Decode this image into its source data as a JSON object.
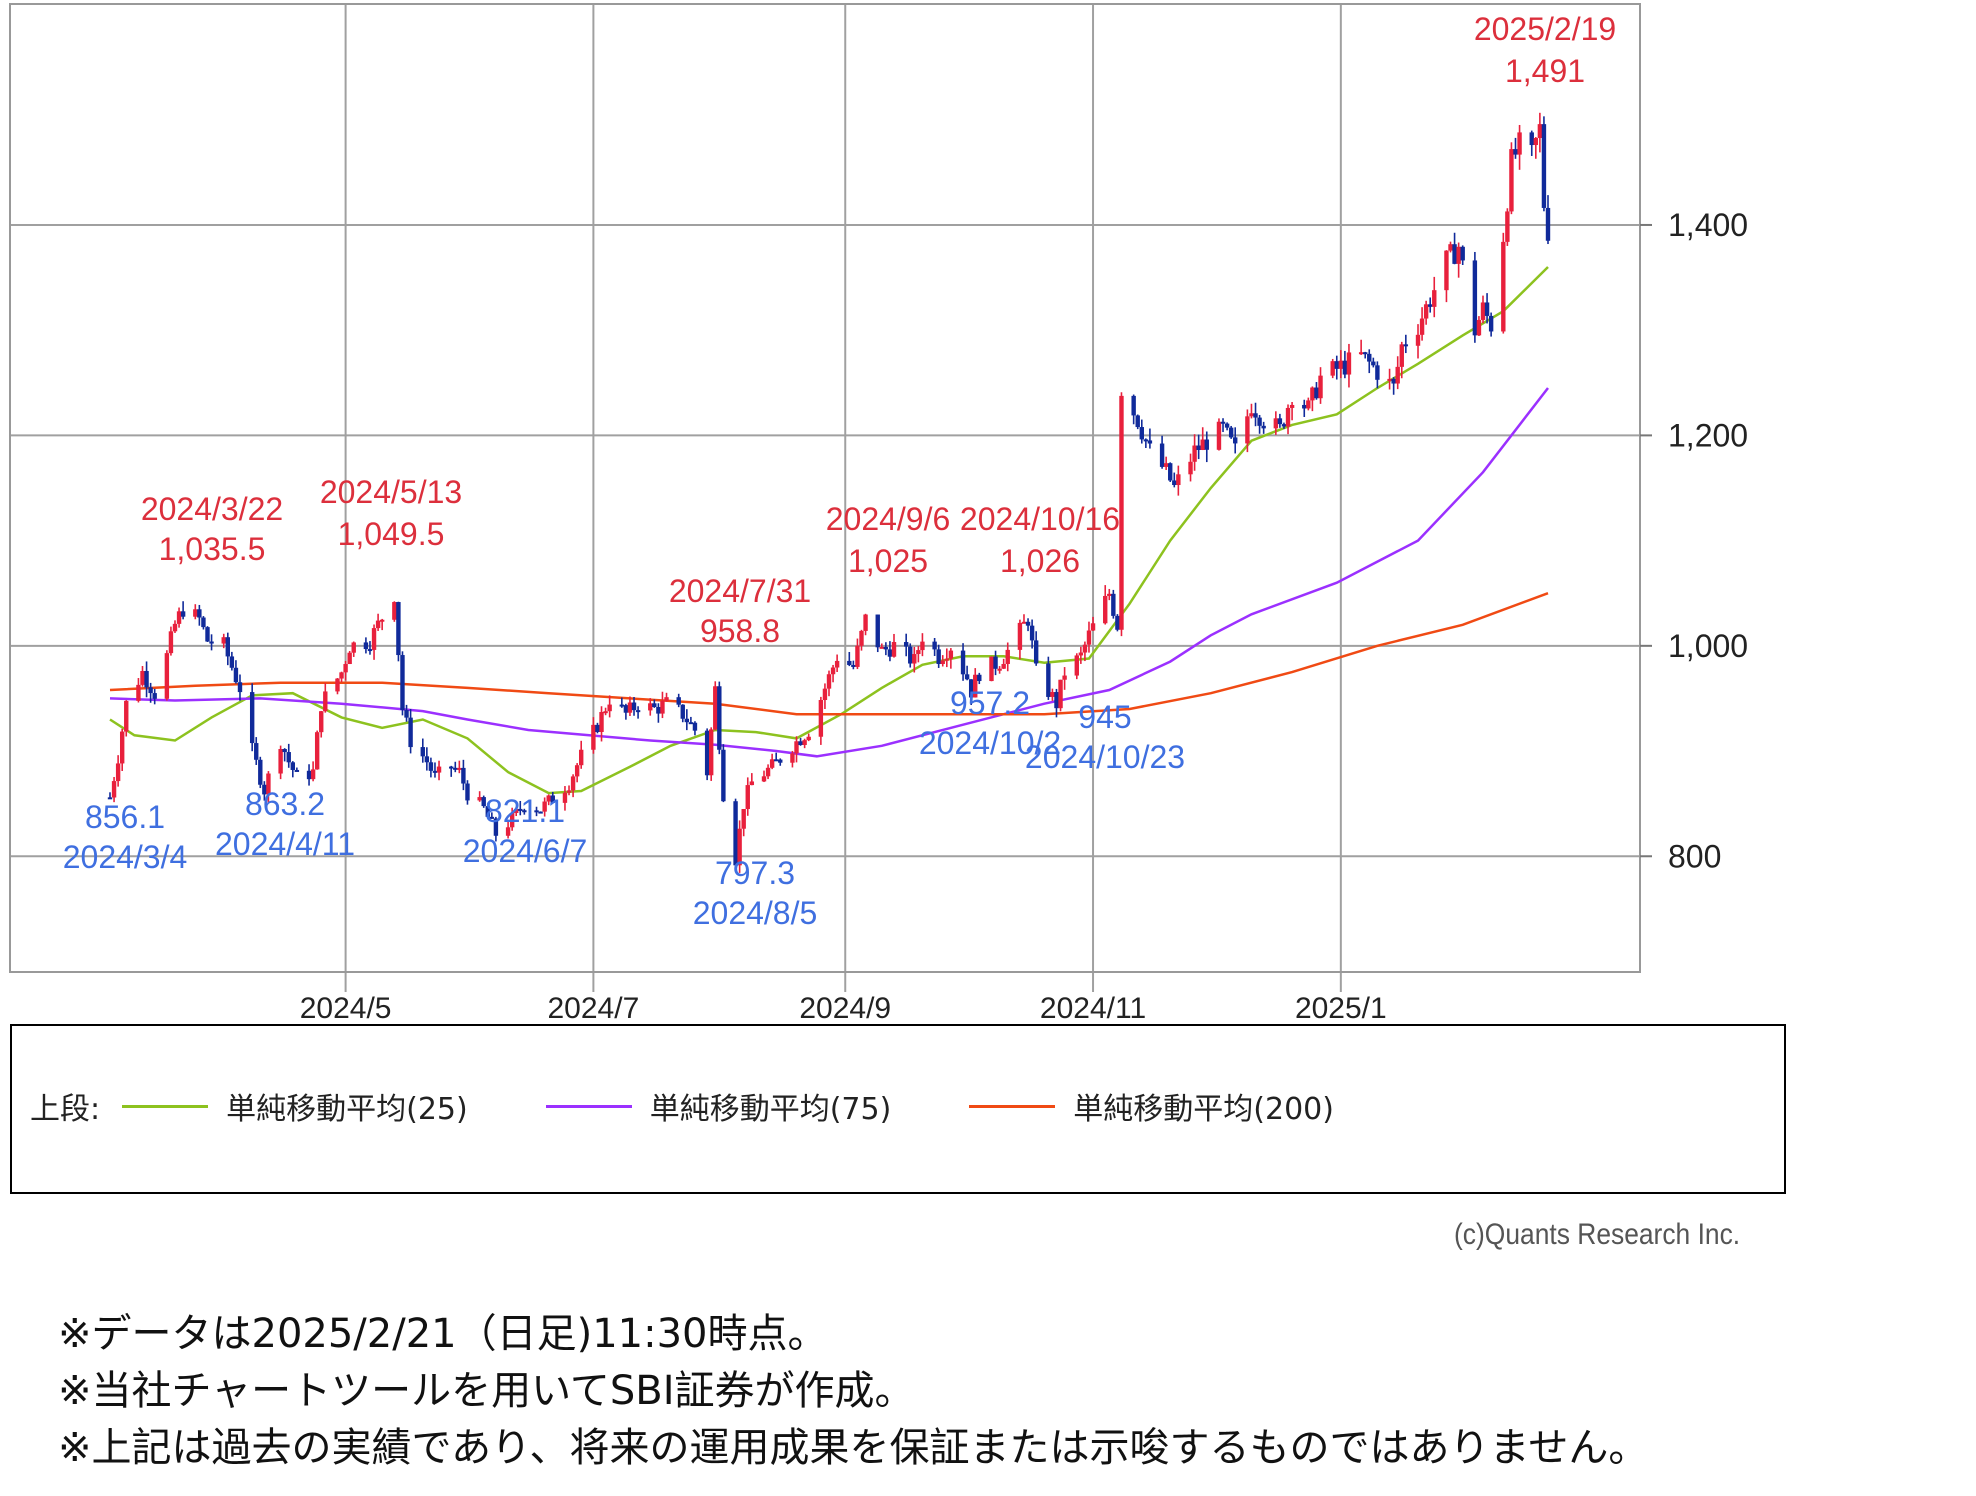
{
  "chart_data": {
    "type": "candlestick",
    "x_ticks": [
      "2024/5",
      "2024/7",
      "2024/9",
      "2024/11",
      "2025/1"
    ],
    "y_ticks": [
      "800",
      "1,000",
      "1,200",
      "1,400"
    ],
    "ylim": [
      690,
      1610
    ],
    "grid": true,
    "price_axis": "right",
    "candle_colors": {
      "up": "#e8203c",
      "down": "#102a9a"
    },
    "price_path": [
      [
        "2024-03-04",
        856
      ],
      [
        "2024-03-06",
        895
      ],
      [
        "2024-03-08",
        945
      ],
      [
        "2024-03-12",
        975
      ],
      [
        "2024-03-15",
        955
      ],
      [
        "2024-03-18",
        990
      ],
      [
        "2024-03-20",
        1020
      ],
      [
        "2024-03-22",
        1035.5
      ],
      [
        "2024-03-26",
        1025
      ],
      [
        "2024-03-28",
        1005
      ],
      [
        "2024-04-01",
        1000
      ],
      [
        "2024-04-03",
        980
      ],
      [
        "2024-04-05",
        960
      ],
      [
        "2024-04-08",
        900
      ],
      [
        "2024-04-11",
        863.2
      ],
      [
        "2024-04-15",
        910
      ],
      [
        "2024-04-17",
        890
      ],
      [
        "2024-04-19",
        875
      ],
      [
        "2024-04-23",
        880
      ],
      [
        "2024-04-25",
        945
      ],
      [
        "2024-04-30",
        975
      ],
      [
        "2024-05-02",
        1000
      ],
      [
        "2024-05-07",
        1005
      ],
      [
        "2024-05-09",
        1020
      ],
      [
        "2024-05-13",
        1049.5
      ],
      [
        "2024-05-15",
        940
      ],
      [
        "2024-05-17",
        910
      ],
      [
        "2024-05-21",
        890
      ],
      [
        "2024-05-23",
        875
      ],
      [
        "2024-05-27",
        885
      ],
      [
        "2024-05-29",
        880
      ],
      [
        "2024-05-31",
        860
      ],
      [
        "2024-06-04",
        845
      ],
      [
        "2024-06-07",
        821.1
      ],
      [
        "2024-06-11",
        835
      ],
      [
        "2024-06-14",
        850
      ],
      [
        "2024-06-18",
        845
      ],
      [
        "2024-06-21",
        855
      ],
      [
        "2024-06-25",
        870
      ],
      [
        "2024-06-28",
        895
      ],
      [
        "2024-07-02",
        925
      ],
      [
        "2024-07-05",
        950
      ],
      [
        "2024-07-09",
        935
      ],
      [
        "2024-07-12",
        945
      ],
      [
        "2024-07-16",
        940
      ],
      [
        "2024-07-19",
        945
      ],
      [
        "2024-07-23",
        935
      ],
      [
        "2024-07-26",
        920
      ],
      [
        "2024-07-29",
        880
      ],
      [
        "2024-07-31",
        958.8
      ],
      [
        "2024-08-02",
        860
      ],
      [
        "2024-08-05",
        797.3
      ],
      [
        "2024-08-07",
        850
      ],
      [
        "2024-08-09",
        870
      ],
      [
        "2024-08-14",
        885
      ],
      [
        "2024-08-19",
        905
      ],
      [
        "2024-08-23",
        920
      ],
      [
        "2024-08-27",
        960
      ],
      [
        "2024-08-30",
        990
      ],
      [
        "2024-09-03",
        980
      ],
      [
        "2024-09-06",
        1025
      ],
      [
        "2024-09-10",
        995
      ],
      [
        "2024-09-13",
        1000
      ],
      [
        "2024-09-18",
        985
      ],
      [
        "2024-09-20",
        1010
      ],
      [
        "2024-09-24",
        990
      ],
      [
        "2024-09-27",
        1000
      ],
      [
        "2024-10-01",
        970
      ],
      [
        "2024-10-02",
        957.2
      ],
      [
        "2024-10-04",
        975
      ],
      [
        "2024-10-09",
        985
      ],
      [
        "2024-10-11",
        995
      ],
      [
        "2024-10-16",
        1026
      ],
      [
        "2024-10-18",
        975
      ],
      [
        "2024-10-23",
        945
      ],
      [
        "2024-10-25",
        975
      ],
      [
        "2024-10-29",
        990
      ],
      [
        "2024-10-31",
        1010
      ],
      [
        "2024-11-05",
        1050
      ],
      [
        "2024-11-07",
        1020
      ],
      [
        "2024-11-08",
        1245
      ],
      [
        "2024-11-12",
        1215
      ],
      [
        "2024-11-15",
        1185
      ],
      [
        "2024-11-19",
        1165
      ],
      [
        "2024-11-21",
        1150
      ],
      [
        "2024-11-26",
        1185
      ],
      [
        "2024-11-29",
        1195
      ],
      [
        "2024-12-03",
        1205
      ],
      [
        "2024-12-06",
        1185
      ],
      [
        "2024-12-10",
        1230
      ],
      [
        "2024-12-13",
        1215
      ],
      [
        "2024-12-17",
        1205
      ],
      [
        "2024-12-20",
        1240
      ],
      [
        "2024-12-24",
        1225
      ],
      [
        "2024-12-27",
        1255
      ],
      [
        "2025-01-06",
        1275
      ],
      [
        "2025-01-09",
        1265
      ],
      [
        "2025-01-14",
        1245
      ],
      [
        "2025-01-16",
        1285
      ],
      [
        "2025-01-20",
        1305
      ],
      [
        "2025-01-23",
        1330
      ],
      [
        "2025-01-27",
        1365
      ],
      [
        "2025-01-30",
        1380
      ],
      [
        "2025-02-03",
        1300
      ],
      [
        "2025-02-05",
        1320
      ],
      [
        "2025-02-07",
        1305
      ],
      [
        "2025-02-10",
        1390
      ],
      [
        "2025-02-12",
        1460
      ],
      [
        "2025-02-14",
        1475
      ],
      [
        "2025-02-17",
        1465
      ],
      [
        "2025-02-19",
        1491
      ],
      [
        "2025-02-20",
        1420
      ],
      [
        "2025-02-21",
        1395
      ]
    ],
    "moving_averages": [
      {
        "name": "単純移動平均(25)",
        "color": "#8dc21f",
        "points": [
          [
            "2024-03-04",
            930
          ],
          [
            "2024-03-10",
            915
          ],
          [
            "2024-03-20",
            910
          ],
          [
            "2024-03-29",
            932
          ],
          [
            "2024-04-08",
            953
          ],
          [
            "2024-04-18",
            955
          ],
          [
            "2024-04-30",
            932
          ],
          [
            "2024-05-10",
            922
          ],
          [
            "2024-05-20",
            930
          ],
          [
            "2024-05-31",
            912
          ],
          [
            "2024-06-10",
            880
          ],
          [
            "2024-06-20",
            860
          ],
          [
            "2024-06-28",
            862
          ],
          [
            "2024-07-10",
            885
          ],
          [
            "2024-07-20",
            905
          ],
          [
            "2024-07-31",
            920
          ],
          [
            "2024-08-10",
            918
          ],
          [
            "2024-08-20",
            912
          ],
          [
            "2024-08-31",
            935
          ],
          [
            "2024-09-10",
            960
          ],
          [
            "2024-09-20",
            982
          ],
          [
            "2024-09-30",
            990
          ],
          [
            "2024-10-10",
            990
          ],
          [
            "2024-10-20",
            984
          ],
          [
            "2024-10-31",
            988
          ],
          [
            "2024-11-10",
            1040
          ],
          [
            "2024-11-20",
            1100
          ],
          [
            "2024-11-30",
            1150
          ],
          [
            "2024-12-10",
            1195
          ],
          [
            "2024-12-20",
            1210
          ],
          [
            "2024-12-31",
            1220
          ],
          [
            "2025-01-10",
            1245
          ],
          [
            "2025-01-20",
            1268
          ],
          [
            "2025-01-31",
            1295
          ],
          [
            "2025-02-10",
            1318
          ],
          [
            "2025-02-21",
            1360
          ]
        ]
      },
      {
        "name": "単純移動平均(75)",
        "color": "#9b30ff",
        "points": [
          [
            "2024-03-04",
            950
          ],
          [
            "2024-03-20",
            948
          ],
          [
            "2024-04-10",
            950
          ],
          [
            "2024-04-30",
            945
          ],
          [
            "2024-05-20",
            938
          ],
          [
            "2024-05-31",
            930
          ],
          [
            "2024-06-15",
            920
          ],
          [
            "2024-06-30",
            915
          ],
          [
            "2024-07-15",
            910
          ],
          [
            "2024-07-31",
            906
          ],
          [
            "2024-08-15",
            900
          ],
          [
            "2024-08-25",
            895
          ],
          [
            "2024-09-10",
            905
          ],
          [
            "2024-09-30",
            925
          ],
          [
            "2024-10-20",
            945
          ],
          [
            "2024-11-05",
            958
          ],
          [
            "2024-11-20",
            985
          ],
          [
            "2024-11-30",
            1010
          ],
          [
            "2024-12-10",
            1030
          ],
          [
            "2024-12-31",
            1060
          ],
          [
            "2025-01-20",
            1100
          ],
          [
            "2025-02-05",
            1165
          ],
          [
            "2025-02-21",
            1245
          ]
        ]
      },
      {
        "name": "単純移動平均(200)",
        "color": "#f04a14",
        "points": [
          [
            "2024-03-04",
            958
          ],
          [
            "2024-03-25",
            962
          ],
          [
            "2024-04-15",
            965
          ],
          [
            "2024-05-10",
            965
          ],
          [
            "2024-05-31",
            960
          ],
          [
            "2024-06-20",
            955
          ],
          [
            "2024-07-10",
            950
          ],
          [
            "2024-07-31",
            945
          ],
          [
            "2024-08-20",
            935
          ],
          [
            "2024-09-10",
            935
          ],
          [
            "2024-09-30",
            935
          ],
          [
            "2024-10-20",
            935
          ],
          [
            "2024-11-10",
            940
          ],
          [
            "2024-11-30",
            955
          ],
          [
            "2024-12-20",
            975
          ],
          [
            "2025-01-10",
            1000
          ],
          [
            "2025-01-31",
            1020
          ],
          [
            "2025-02-21",
            1050
          ]
        ]
      }
    ],
    "annotations": [
      {
        "kind": "high",
        "date": "2024/3/22",
        "value": "1,035.5"
      },
      {
        "kind": "high",
        "date": "2024/5/13",
        "value": "1,049.5"
      },
      {
        "kind": "high",
        "date": "2024/7/31",
        "value": "958.8"
      },
      {
        "kind": "high",
        "date": "2024/9/6",
        "value": "1,025"
      },
      {
        "kind": "high",
        "date": "2024/10/16",
        "value": "1,026"
      },
      {
        "kind": "high",
        "date": "2025/2/19",
        "value": "1,491"
      },
      {
        "kind": "low",
        "date": "2024/3/4",
        "value": "856.1"
      },
      {
        "kind": "low",
        "date": "2024/4/11",
        "value": "863.2"
      },
      {
        "kind": "low",
        "date": "2024/6/7",
        "value": "821.1"
      },
      {
        "kind": "low",
        "date": "2024/8/5",
        "value": "797.3"
      },
      {
        "kind": "low",
        "date": "2024/10/2",
        "value": "957.2"
      },
      {
        "kind": "low",
        "date": "2024/10/23",
        "value": "945"
      }
    ]
  },
  "legend": {
    "prefix": "上段:",
    "items": [
      {
        "label": "単純移動平均(25)",
        "color": "#8dc21f"
      },
      {
        "label": "単純移動平均(75)",
        "color": "#9b30ff"
      },
      {
        "label": "単純移動平均(200)",
        "color": "#f04a14"
      }
    ]
  },
  "credit": "(c)Quants Research Inc.",
  "notes": [
    "※データは2025/2/21（日足)11:30時点。",
    "※当社チャートツールを用いてSBI証券が作成。",
    "※上記は過去の実績であり、将来の運用成果を保証または示唆するものではありません。"
  ]
}
